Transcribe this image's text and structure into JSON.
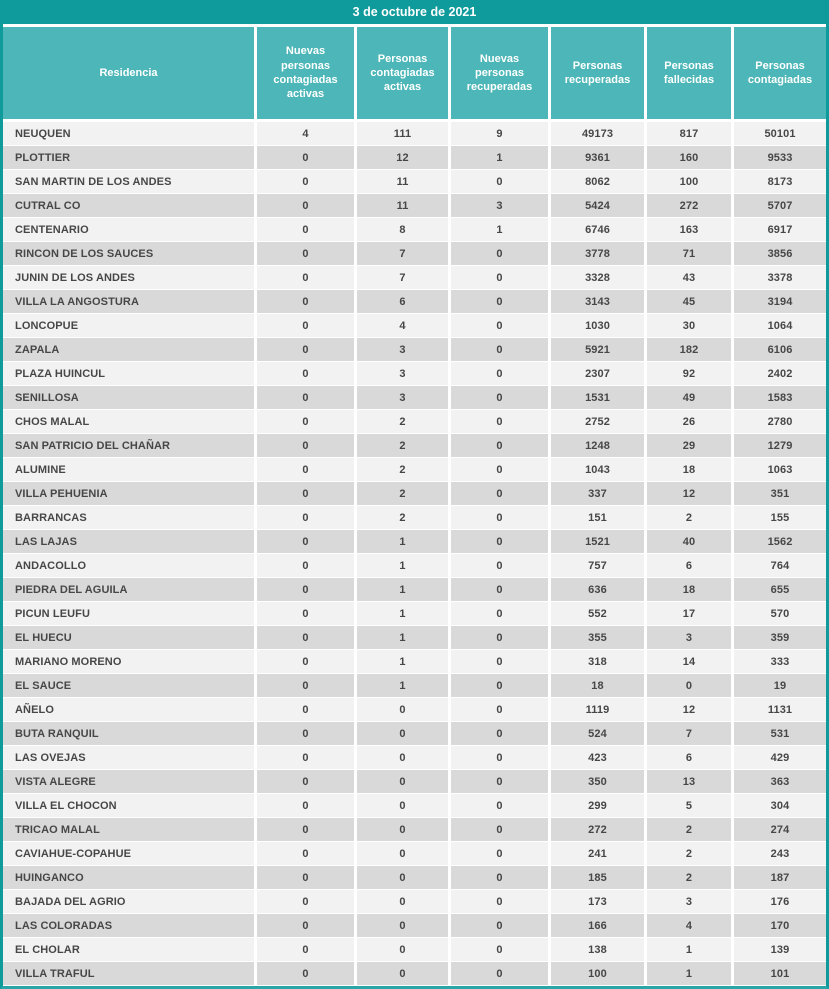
{
  "report": {
    "date_title": "3 de octubre de 2021",
    "colors": {
      "banner_teal": "#0f9a9c",
      "header_teal": "#4db6b8",
      "row_light": "#f2f2f2",
      "row_dark": "#d9d9d9",
      "text": "#474747"
    }
  },
  "table": {
    "columns": [
      "Residencia",
      "Nuevas personas contagiadas activas",
      "Personas contagiadas activas",
      "Nuevas personas recuperadas",
      "Personas recuperadas",
      "Personas fallecidas",
      "Personas contagiadas"
    ],
    "rows": [
      [
        "NEUQUEN",
        4,
        111,
        9,
        49173,
        817,
        50101
      ],
      [
        "PLOTTIER",
        0,
        12,
        1,
        9361,
        160,
        9533
      ],
      [
        "SAN MARTIN DE LOS ANDES",
        0,
        11,
        0,
        8062,
        100,
        8173
      ],
      [
        "CUTRAL CO",
        0,
        11,
        3,
        5424,
        272,
        5707
      ],
      [
        "CENTENARIO",
        0,
        8,
        1,
        6746,
        163,
        6917
      ],
      [
        "RINCON DE LOS SAUCES",
        0,
        7,
        0,
        3778,
        71,
        3856
      ],
      [
        "JUNIN DE LOS ANDES",
        0,
        7,
        0,
        3328,
        43,
        3378
      ],
      [
        "VILLA LA ANGOSTURA",
        0,
        6,
        0,
        3143,
        45,
        3194
      ],
      [
        "LONCOPUE",
        0,
        4,
        0,
        1030,
        30,
        1064
      ],
      [
        "ZAPALA",
        0,
        3,
        0,
        5921,
        182,
        6106
      ],
      [
        "PLAZA HUINCUL",
        0,
        3,
        0,
        2307,
        92,
        2402
      ],
      [
        "SENILLOSA",
        0,
        3,
        0,
        1531,
        49,
        1583
      ],
      [
        "CHOS MALAL",
        0,
        2,
        0,
        2752,
        26,
        2780
      ],
      [
        "SAN PATRICIO DEL CHAÑAR",
        0,
        2,
        0,
        1248,
        29,
        1279
      ],
      [
        "ALUMINE",
        0,
        2,
        0,
        1043,
        18,
        1063
      ],
      [
        "VILLA PEHUENIA",
        0,
        2,
        0,
        337,
        12,
        351
      ],
      [
        "BARRANCAS",
        0,
        2,
        0,
        151,
        2,
        155
      ],
      [
        "LAS LAJAS",
        0,
        1,
        0,
        1521,
        40,
        1562
      ],
      [
        "ANDACOLLO",
        0,
        1,
        0,
        757,
        6,
        764
      ],
      [
        "PIEDRA DEL AGUILA",
        0,
        1,
        0,
        636,
        18,
        655
      ],
      [
        "PICUN LEUFU",
        0,
        1,
        0,
        552,
        17,
        570
      ],
      [
        "EL HUECU",
        0,
        1,
        0,
        355,
        3,
        359
      ],
      [
        "MARIANO MORENO",
        0,
        1,
        0,
        318,
        14,
        333
      ],
      [
        "EL SAUCE",
        0,
        1,
        0,
        18,
        0,
        19
      ],
      [
        "AÑELO",
        0,
        0,
        0,
        1119,
        12,
        1131
      ],
      [
        "BUTA RANQUIL",
        0,
        0,
        0,
        524,
        7,
        531
      ],
      [
        "LAS OVEJAS",
        0,
        0,
        0,
        423,
        6,
        429
      ],
      [
        "VISTA ALEGRE",
        0,
        0,
        0,
        350,
        13,
        363
      ],
      [
        "VILLA EL CHOCON",
        0,
        0,
        0,
        299,
        5,
        304
      ],
      [
        "TRICAO MALAL",
        0,
        0,
        0,
        272,
        2,
        274
      ],
      [
        "CAVIAHUE-COPAHUE",
        0,
        0,
        0,
        241,
        2,
        243
      ],
      [
        "HUINGANCO",
        0,
        0,
        0,
        185,
        2,
        187
      ],
      [
        "BAJADA DEL AGRIO",
        0,
        0,
        0,
        173,
        3,
        176
      ],
      [
        "LAS COLORADAS",
        0,
        0,
        0,
        166,
        4,
        170
      ],
      [
        "EL CHOLAR",
        0,
        0,
        0,
        138,
        1,
        139
      ],
      [
        "VILLA TRAFUL",
        0,
        0,
        0,
        100,
        1,
        101
      ]
    ]
  }
}
